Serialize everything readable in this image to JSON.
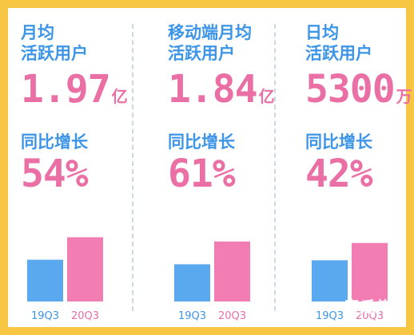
{
  "chart_data": [
    {
      "type": "bar",
      "title": "月均 活跃用户",
      "title_lines": [
        "月均",
        "活跃用户"
      ],
      "value_number": "1.97",
      "value_unit": "亿",
      "growth_label": "同比增长",
      "growth_value": "54%",
      "categories": [
        "19Q3",
        "20Q3"
      ],
      "values": [
        1.28,
        1.97
      ],
      "ylim": [
        0,
        2.2
      ],
      "colors": [
        "#5aa8ee",
        "#f27db3"
      ]
    },
    {
      "type": "bar",
      "title": "移动端月均 活跃用户",
      "title_lines": [
        "移动端月均",
        "活跃用户"
      ],
      "value_number": "1.84",
      "value_unit": "亿",
      "growth_label": "同比增长",
      "growth_value": "61%",
      "categories": [
        "19Q3",
        "20Q3"
      ],
      "values": [
        1.14,
        1.84
      ],
      "ylim": [
        0,
        2.2
      ],
      "colors": [
        "#5aa8ee",
        "#f27db3"
      ]
    },
    {
      "type": "bar",
      "title": "日均 活跃用户",
      "title_lines": [
        "日均",
        "活跃用户"
      ],
      "value_number": "5300",
      "value_unit": "万",
      "growth_label": "同比增长",
      "growth_value": "42%",
      "categories": [
        "19Q3",
        "20Q3"
      ],
      "values": [
        3732,
        5300
      ],
      "ylim": [
        0,
        6500
      ],
      "colors": [
        "#5aa8ee",
        "#f27db3"
      ]
    }
  ],
  "watermark": "青瓜传"
}
